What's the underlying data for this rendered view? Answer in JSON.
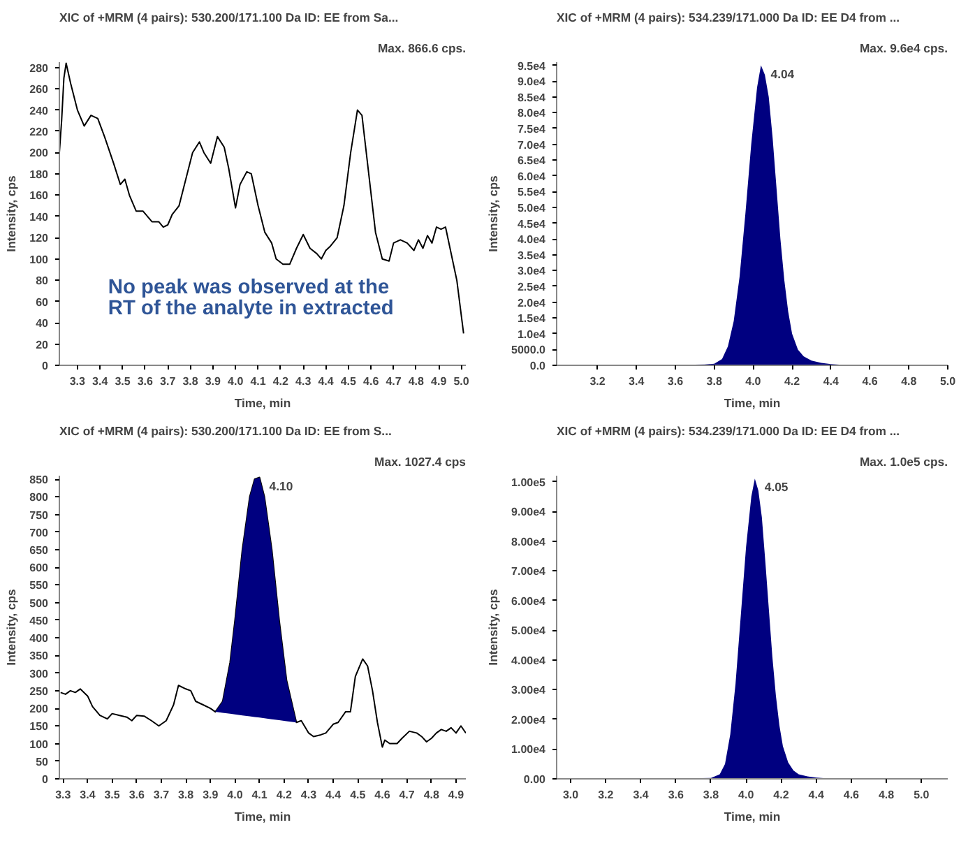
{
  "chart_data": [
    {
      "type": "line",
      "title": "XIC of +MRM (4 pairs): 530.200/171.100 Da ID: EE from Sa...",
      "subtitle": "Max. 866.6 cps.",
      "xlabel": "Time, min",
      "ylabel": "Intensity, cps",
      "grid": false,
      "xlim": [
        3.22,
        5.02
      ],
      "xticks": [
        3.3,
        3.4,
        3.5,
        3.6,
        3.7,
        3.8,
        3.9,
        {
          "value": 4.0,
          "label": "4.0"
        },
        4.1,
        4.2,
        4.3,
        4.4,
        4.5,
        4.6,
        4.7,
        4.8,
        4.9,
        {
          "value": 5.0,
          "label": "5.0"
        }
      ],
      "ylim": [
        0,
        285
      ],
      "yticks": [
        0,
        20,
        40,
        60,
        80,
        100,
        120,
        140,
        160,
        180,
        200,
        220,
        240,
        260,
        280
      ],
      "annotations": [
        "No peak was observed at the RT of the analyte in extracted"
      ],
      "series": [
        {
          "color": "#000000",
          "x": [
            3.22,
            3.23,
            3.24,
            3.25,
            3.27,
            3.3,
            3.33,
            3.36,
            3.39,
            3.42,
            3.46,
            3.49,
            3.51,
            3.53,
            3.56,
            3.59,
            3.63,
            3.66,
            3.68,
            3.7,
            3.72,
            3.75,
            3.78,
            3.81,
            3.84,
            3.86,
            3.89,
            3.92,
            3.95,
            3.97,
            4.0,
            4.02,
            4.05,
            4.07,
            4.1,
            4.13,
            4.16,
            4.18,
            4.21,
            4.24,
            4.27,
            4.3,
            4.33,
            4.36,
            4.38,
            4.4,
            4.42,
            4.45,
            4.48,
            4.51,
            4.54,
            4.56,
            4.59,
            4.62,
            4.65,
            4.68,
            4.7,
            4.73,
            4.76,
            4.79,
            4.81,
            4.83,
            4.85,
            4.87,
            4.89,
            4.91,
            4.93,
            4.95,
            4.98,
            5.01
          ],
          "values": [
            200,
            230,
            270,
            284,
            265,
            240,
            225,
            235,
            232,
            215,
            190,
            170,
            175,
            160,
            145,
            145,
            135,
            135,
            130,
            132,
            142,
            150,
            175,
            200,
            210,
            200,
            190,
            215,
            205,
            185,
            148,
            170,
            182,
            180,
            150,
            125,
            115,
            100,
            95,
            95,
            110,
            123,
            110,
            105,
            100,
            108,
            112,
            120,
            150,
            200,
            240,
            235,
            180,
            125,
            100,
            98,
            115,
            118,
            115,
            108,
            118,
            110,
            122,
            115,
            130,
            128,
            130,
            110,
            80,
            30
          ]
        }
      ]
    },
    {
      "type": "area",
      "title": "XIC of +MRM (4 pairs): 534.239/171.000 Da ID: EE D4 from ...",
      "subtitle": "Max. 9.6e4 cps.",
      "xlabel": "Time, min",
      "ylabel": "Intensity, cps",
      "grid": false,
      "xlim": [
        2.99,
        5.0
      ],
      "xticks": [
        3.2,
        3.4,
        3.6,
        3.8,
        {
          "value": 4.0,
          "label": "4.0"
        },
        4.2,
        4.4,
        4.6,
        4.8,
        {
          "value": 5.0,
          "label": "5.0"
        }
      ],
      "ylim": [
        0,
        96000
      ],
      "yticks": [
        {
          "value": 0,
          "label": "0.0"
        },
        {
          "value": 5000,
          "label": "5000.0"
        },
        {
          "value": 10000,
          "label": "1.0e4"
        },
        {
          "value": 15000,
          "label": "1.5e4"
        },
        {
          "value": 20000,
          "label": "2.0e4"
        },
        {
          "value": 25000,
          "label": "2.5e4"
        },
        {
          "value": 30000,
          "label": "3.0e4"
        },
        {
          "value": 35000,
          "label": "3.5e4"
        },
        {
          "value": 40000,
          "label": "4.0e4"
        },
        {
          "value": 45000,
          "label": "4.5e4"
        },
        {
          "value": 50000,
          "label": "5.0e4"
        },
        {
          "value": 55000,
          "label": "5.5e4"
        },
        {
          "value": 60000,
          "label": "6.0e4"
        },
        {
          "value": 65000,
          "label": "6.5e4"
        },
        {
          "value": 70000,
          "label": "7.0e4"
        },
        {
          "value": 75000,
          "label": "7.5e4"
        },
        {
          "value": 80000,
          "label": "8.0e4"
        },
        {
          "value": 85000,
          "label": "8.5e4"
        },
        {
          "value": 90000,
          "label": "9.0e4"
        },
        {
          "value": 95000,
          "label": "9.5e4"
        }
      ],
      "annotations": [
        {
          "text": "4.04",
          "x": 4.04,
          "y": 95000
        }
      ],
      "series": [
        {
          "color": "#000080",
          "x": [
            2.99,
            3.5,
            3.75,
            3.8,
            3.84,
            3.87,
            3.9,
            3.93,
            3.96,
            3.99,
            4.02,
            4.04,
            4.06,
            4.08,
            4.1,
            4.12,
            4.14,
            4.16,
            4.18,
            4.2,
            4.23,
            4.26,
            4.3,
            4.35,
            4.4,
            4.5,
            5.0
          ],
          "values": [
            0,
            0,
            300,
            500,
            2000,
            6000,
            14000,
            28000,
            48000,
            70000,
            88000,
            95000,
            92000,
            85000,
            72000,
            56000,
            40000,
            27000,
            17000,
            10000,
            5000,
            2800,
            1500,
            800,
            400,
            0,
            0
          ]
        }
      ]
    },
    {
      "type": "line",
      "title": "XIC of +MRM (4 pairs): 530.200/171.100 Da ID: EE from S...",
      "subtitle": "Max. 1027.4 cps",
      "xlabel": "Time, min",
      "ylabel": "Intensity, cps",
      "grid": false,
      "xlim": [
        3.285,
        4.94
      ],
      "xticks": [
        3.3,
        3.4,
        3.5,
        3.6,
        3.7,
        3.8,
        3.9,
        {
          "value": 4.0,
          "label": "4.0"
        },
        4.1,
        4.2,
        4.3,
        4.4,
        4.5,
        4.6,
        4.7,
        4.8,
        4.9
      ],
      "ylim": [
        0,
        860
      ],
      "yticks": [
        0,
        50,
        100,
        150,
        200,
        250,
        300,
        350,
        400,
        450,
        500,
        550,
        600,
        650,
        700,
        750,
        800,
        850
      ],
      "annotations": [
        {
          "text": "4.10",
          "x": 4.1,
          "y": 855
        }
      ],
      "series": [
        {
          "color": "#000000",
          "x": [
            3.29,
            3.31,
            3.33,
            3.35,
            3.37,
            3.4,
            3.42,
            3.45,
            3.48,
            3.5,
            3.53,
            3.56,
            3.58,
            3.6,
            3.63,
            3.66,
            3.69,
            3.72,
            3.75,
            3.77,
            3.8,
            3.82,
            3.84,
            3.87,
            3.9,
            3.92,
            3.95,
            3.98,
            4.0,
            4.03,
            4.06,
            4.08,
            4.1,
            4.12,
            4.15,
            4.18,
            4.21,
            4.25,
            4.27,
            4.3,
            4.32,
            4.35,
            4.37,
            4.4,
            4.42,
            4.45,
            4.47,
            4.49,
            4.52,
            4.54,
            4.56,
            4.58,
            4.6,
            4.61,
            4.63,
            4.66,
            4.68,
            4.71,
            4.74,
            4.76,
            4.78,
            4.8,
            4.82,
            4.84,
            4.86,
            4.88,
            4.9,
            4.92,
            4.94
          ],
          "values": [
            245,
            240,
            250,
            245,
            255,
            235,
            205,
            180,
            170,
            185,
            180,
            175,
            165,
            180,
            178,
            165,
            150,
            165,
            210,
            265,
            255,
            250,
            220,
            210,
            200,
            190,
            220,
            330,
            450,
            650,
            800,
            850,
            855,
            800,
            650,
            450,
            280,
            160,
            165,
            130,
            120,
            125,
            130,
            155,
            160,
            190,
            190,
            290,
            340,
            320,
            250,
            160,
            90,
            110,
            100,
            100,
            115,
            135,
            130,
            120,
            105,
            115,
            130,
            140,
            135,
            145,
            130,
            150,
            130
          ]
        },
        {
          "type": "area",
          "color": "#000080",
          "x": [
            3.92,
            3.95,
            3.98,
            4.0,
            4.03,
            4.06,
            4.08,
            4.1,
            4.12,
            4.15,
            4.18,
            4.21,
            4.25
          ],
          "values": [
            190,
            220,
            330,
            450,
            650,
            800,
            850,
            855,
            800,
            650,
            450,
            280,
            160
          ]
        }
      ]
    },
    {
      "type": "area",
      "title": "XIC of +MRM (4 pairs): 534.239/171.000 Da ID: EE D4 from ...",
      "subtitle": "Max. 1.0e5 cps.",
      "xlabel": "Time, min",
      "ylabel": "Intensity, cps",
      "grid": false,
      "xlim": [
        2.92,
        5.15
      ],
      "xticks": [
        {
          "value": 3.0,
          "label": "3.0"
        },
        3.2,
        3.4,
        3.6,
        3.8,
        {
          "value": 4.0,
          "label": "4.0"
        },
        4.2,
        4.4,
        4.6,
        4.8,
        {
          "value": 5.0,
          "label": "5.0"
        }
      ],
      "ylim": [
        0,
        102000
      ],
      "yticks": [
        {
          "value": 0,
          "label": "0.00"
        },
        {
          "value": 10000,
          "label": "1.00e4"
        },
        {
          "value": 20000,
          "label": "2.00e4"
        },
        {
          "value": 30000,
          "label": "3.00e4"
        },
        {
          "value": 40000,
          "label": "4.00e4"
        },
        {
          "value": 50000,
          "label": "5.00e4"
        },
        {
          "value": 60000,
          "label": "6.00e4"
        },
        {
          "value": 70000,
          "label": "7.00e4"
        },
        {
          "value": 80000,
          "label": "8.00e4"
        },
        {
          "value": 90000,
          "label": "9.00e4"
        },
        {
          "value": 100000,
          "label": "1.00e5"
        }
      ],
      "annotations": [
        {
          "text": "4.05",
          "x": 4.05,
          "y": 101000
        }
      ],
      "series": [
        {
          "color": "#000080",
          "x": [
            2.92,
            3.5,
            3.8,
            3.85,
            3.88,
            3.91,
            3.94,
            3.97,
            4.0,
            4.03,
            4.05,
            4.07,
            4.09,
            4.11,
            4.13,
            4.15,
            4.17,
            4.19,
            4.21,
            4.24,
            4.27,
            4.3,
            4.35,
            4.4,
            4.5,
            5.15
          ],
          "values": [
            0,
            0,
            300,
            1500,
            5000,
            15000,
            32000,
            55000,
            78000,
            95000,
            101000,
            97000,
            88000,
            73000,
            57000,
            41000,
            28000,
            18000,
            11000,
            5500,
            2800,
            1500,
            800,
            400,
            0,
            0
          ]
        }
      ]
    }
  ]
}
